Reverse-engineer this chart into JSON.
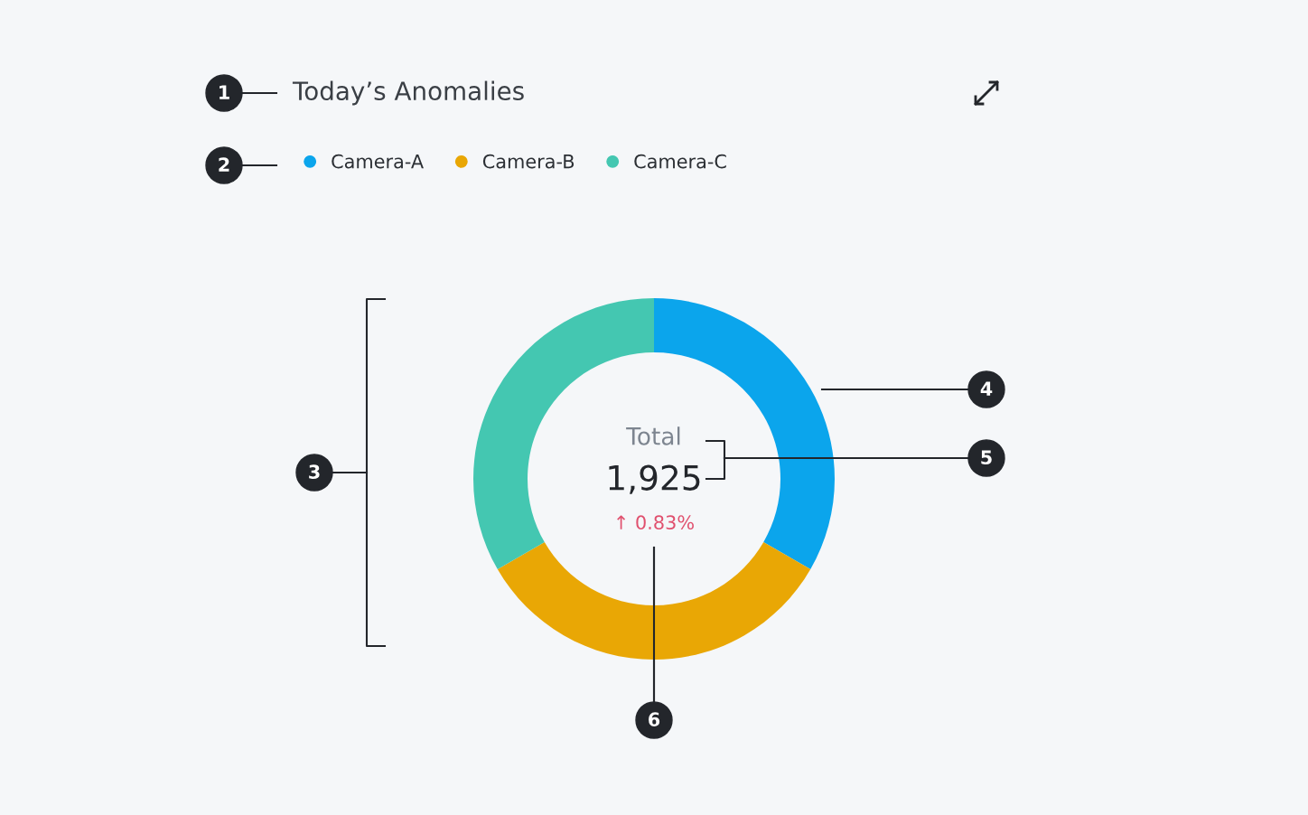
{
  "chart_data": {
    "type": "donut",
    "title": "Today’s Anomalies",
    "categories": [
      "Camera-A",
      "Camera-B",
      "Camera-C"
    ],
    "values": [
      33.33,
      33.33,
      33.34
    ],
    "colors": [
      "#0ba5ec",
      "#e9a705",
      "#44c7b1"
    ],
    "legend": "top left",
    "annotations": [
      "1",
      "2",
      "3",
      "4",
      "5",
      "6",
      "Total",
      "1,925",
      "↑ 0.83%"
    ]
  }
}
